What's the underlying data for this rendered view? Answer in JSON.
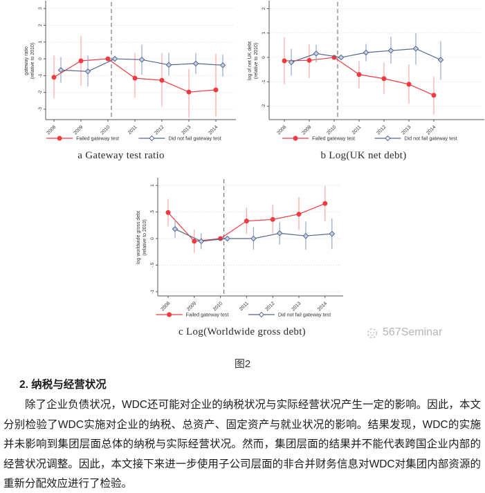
{
  "figure": {
    "label": "图2",
    "colors": {
      "red": "#ee3a40",
      "red_ci": "#f7a8a3",
      "blue": "#51658f",
      "blue_ci": "#97a7c7",
      "blue_fill": "#c6cfe0",
      "grid": "#d9d9d9",
      "axis": "#555555",
      "text": "#303030",
      "vline": "#777777"
    }
  },
  "watermark": {
    "text": "567Seminar"
  },
  "chart_data": [
    {
      "type": "line",
      "panel": "a",
      "title": "a Gateway test ratio",
      "ylabel": "gateway ratio\n(relative to 2010)",
      "x": [
        "2008",
        "2009",
        "2010",
        "2011",
        "2012",
        "2013",
        "2014"
      ],
      "yticks": [
        [
          3,
          "3"
        ],
        [
          2,
          "2"
        ],
        [
          1,
          "1"
        ],
        [
          0,
          "0"
        ],
        [
          -1,
          "-1"
        ],
        [
          -2,
          "-2"
        ],
        [
          -3,
          "-3"
        ]
      ],
      "ylim": [
        -3.62,
        3.38
      ],
      "vline_x": "2010",
      "grid": true,
      "legend_position": "bottom",
      "series": [
        {
          "name": "Failed gateway test",
          "marker": "circle",
          "values": [
            -1.1,
            -0.12,
            0,
            -1.15,
            -1.28,
            -1.98,
            -1.85
          ],
          "ci_low": [
            -2.35,
            -1.6,
            0,
            -2.3,
            -2.85,
            -3.5,
            -3.45
          ],
          "ci_high": [
            0.2,
            1.35,
            0,
            0.35,
            0.35,
            -0.6,
            0.3
          ]
        },
        {
          "name": "Did not fail gateway test",
          "marker": "diamond",
          "values": [
            -0.67,
            -0.75,
            0,
            -0.05,
            -0.36,
            -0.28,
            -0.38
          ],
          "ci_low": [
            -1.42,
            -1.65,
            0,
            -0.95,
            -1.0,
            -0.9,
            -1.05
          ],
          "ci_high": [
            0.1,
            0.2,
            0,
            0.85,
            0.35,
            0.35,
            0.25
          ]
        }
      ]
    },
    {
      "type": "line",
      "panel": "b",
      "title": "b Log(UK net debt)",
      "ylabel": "log of net UK debt\n(relative to 2010)",
      "x": [
        "2008",
        "2009",
        "2010",
        "2011",
        "2012",
        "2013",
        "2014"
      ],
      "yticks": [
        [
          2,
          "2"
        ],
        [
          1,
          "1"
        ],
        [
          0,
          "0"
        ],
        [
          -1,
          "-1"
        ],
        [
          -2,
          "-2"
        ]
      ],
      "ylim": [
        -2.55,
        2.27
      ],
      "vline_x": "2010",
      "grid": true,
      "legend_position": "bottom",
      "series": [
        {
          "name": "Failed gateway test",
          "marker": "circle",
          "values": [
            -0.14,
            -0.12,
            0,
            -0.7,
            -0.87,
            -1.1,
            -1.55
          ],
          "ci_low": [
            -1.1,
            -0.85,
            0,
            -1.27,
            -1.5,
            -1.9,
            -2.33
          ],
          "ci_high": [
            0.82,
            0.55,
            0,
            -0.15,
            -0.22,
            -0.28,
            -0.78
          ]
        },
        {
          "name": "Did not fail gateway test",
          "marker": "diamond",
          "values": [
            -0.2,
            0.16,
            0,
            0.2,
            0.28,
            0.36,
            -0.1
          ],
          "ci_low": [
            -0.75,
            -0.2,
            0,
            -0.16,
            -0.25,
            -0.3,
            -0.92
          ],
          "ci_high": [
            0.35,
            0.52,
            0,
            0.55,
            0.85,
            1.0,
            0.67
          ]
        }
      ]
    },
    {
      "type": "line",
      "panel": "c",
      "title": "c Log(Worldwide gross debt)",
      "ylabel": "log worldwide gross debt\n(relative to 2010)",
      "x": [
        "2008",
        "2009",
        "2010",
        "2011",
        "2012",
        "2013",
        "2014"
      ],
      "yticks": [
        [
          1,
          "1"
        ],
        [
          0.5,
          ".5"
        ],
        [
          0,
          "0"
        ],
        [
          -0.5,
          "-.5"
        ],
        [
          -1,
          "-1"
        ]
      ],
      "ylim": [
        -1.08,
        1.12
      ],
      "vline_x": "2010",
      "grid": true,
      "legend_position": "bottom",
      "series": [
        {
          "name": "Failed gateway test",
          "marker": "circle",
          "values": [
            0.49,
            -0.05,
            0,
            0.33,
            0.36,
            0.46,
            0.66
          ],
          "ci_low": [
            0.23,
            -0.27,
            0,
            0.09,
            0.09,
            0.16,
            0.33
          ],
          "ci_high": [
            0.75,
            0.17,
            0,
            0.58,
            0.64,
            0.78,
            0.99
          ]
        },
        {
          "name": "Did not fail gateway test",
          "marker": "diamond",
          "values": [
            0.18,
            -0.05,
            0,
            0.0,
            0.1,
            0.05,
            0.09
          ],
          "ci_low": [
            0.01,
            -0.2,
            0,
            -0.21,
            -0.11,
            -0.21,
            -0.2
          ],
          "ci_high": [
            0.35,
            0.1,
            0,
            0.21,
            0.31,
            0.32,
            0.38
          ]
        }
      ]
    }
  ],
  "body": {
    "heading": "2. 纳税与经营状况",
    "paragraph": "除了企业负债状况，WDC还可能对企业的纳税状况与实际经营状况产生一定的影响。因此，本文分别检验了WDC实施对企业的纳税、总资产、固定资产与就业状况的影响。结果发现，WDC的实施并未影响到集团层面总体的纳税与实际经营状况。然而，集团层面的结果并不能代表跨国企业内部的经营状况调整。因此，本文接下来进一步使用子公司层面的非合并财务信息对WDC对集团内部资源的重新分配效应进行了检验。"
  }
}
